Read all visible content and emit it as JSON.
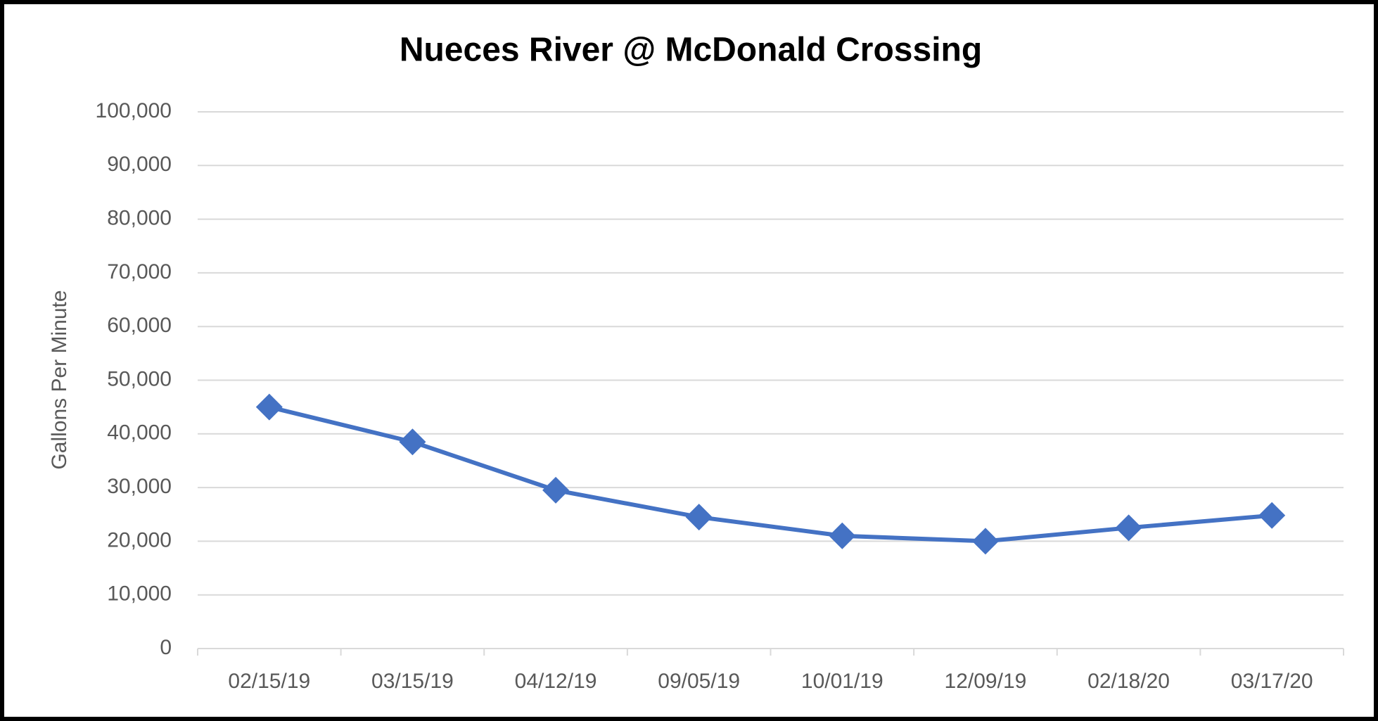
{
  "chart_data": {
    "type": "line",
    "title": "Nueces River @ McDonald Crossing",
    "y_label": "Gallons Per Minute",
    "categories": [
      "02/15/19",
      "03/15/19",
      "04/12/19",
      "09/05/19",
      "10/01/19",
      "12/09/19",
      "02/18/20",
      "03/17/20"
    ],
    "series": [
      {
        "name": "Gallons Per Minute",
        "color": "#4472c4",
        "values": [
          45000,
          38500,
          29500,
          24500,
          21000,
          20000,
          22500,
          24800
        ]
      }
    ],
    "ylim": [
      0,
      100000
    ],
    "yticks": [
      0,
      {
        "value": 10000,
        "label": "10,000"
      },
      {
        "value": 20000,
        "label": "20,000"
      },
      {
        "value": 30000,
        "label": "30,000"
      },
      {
        "value": 40000,
        "label": "40,000"
      },
      {
        "value": 50000,
        "label": "50,000"
      },
      {
        "value": 60000,
        "label": "60,000"
      },
      {
        "value": 70000,
        "label": "70,000"
      },
      {
        "value": 80000,
        "label": "80,000"
      },
      {
        "value": 90000,
        "label": "90,000"
      },
      {
        "value": 100000,
        "label": "100,000"
      }
    ],
    "grid": true,
    "marker": "diamond"
  }
}
